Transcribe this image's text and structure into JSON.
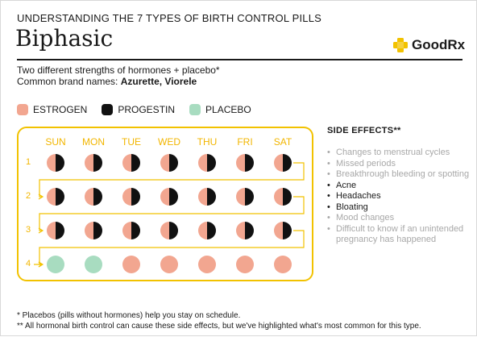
{
  "header": {
    "eyebrow": "UNDERSTANDING THE 7 TYPES OF BIRTH CONTROL PILLS",
    "title": "Biphasic",
    "logo_text": "GoodRx"
  },
  "intro": {
    "line1": "Two different strengths of hormones  + placebo*",
    "brand_prefix": "Common brand names: ",
    "brand_names": "Azurette, Viorele"
  },
  "legend": [
    {
      "label": "ESTROGEN",
      "color": "#f2a690"
    },
    {
      "label": "PROGESTIN",
      "color": "#111111"
    },
    {
      "label": "PLACEBO",
      "color": "#a8dcc0"
    }
  ],
  "calendar": {
    "days": [
      "SUN",
      "MON",
      "TUE",
      "WED",
      "THU",
      "FRI",
      "SAT"
    ],
    "weeks": [
      {
        "label": "1",
        "pills": [
          "combo",
          "combo",
          "combo",
          "combo",
          "combo",
          "combo",
          "combo"
        ]
      },
      {
        "label": "2",
        "pills": [
          "combo",
          "combo",
          "combo",
          "combo",
          "combo",
          "combo",
          "combo"
        ]
      },
      {
        "label": "3",
        "pills": [
          "combo",
          "combo",
          "combo",
          "combo",
          "combo",
          "combo",
          "combo"
        ]
      },
      {
        "label": "4",
        "pills": [
          "placebo",
          "placebo",
          "estrogen",
          "estrogen",
          "estrogen",
          "estrogen",
          "estrogen"
        ]
      }
    ],
    "accent_color": "#f2c200"
  },
  "side_effects": {
    "title": "SIDE EFFECTS**",
    "items": [
      {
        "text": "Changes to menstrual cycles",
        "highlight": false
      },
      {
        "text": "Missed periods",
        "highlight": false
      },
      {
        "text": "Breakthrough bleeding or spotting",
        "highlight": false
      },
      {
        "text": "Acne",
        "highlight": true
      },
      {
        "text": "Headaches",
        "highlight": true
      },
      {
        "text": "Bloating",
        "highlight": true
      },
      {
        "text": "Mood changes",
        "highlight": false
      },
      {
        "text": "Difficult to know if an unintended pregnancy has happened",
        "highlight": false
      }
    ]
  },
  "footnotes": {
    "note1": "* Placebos (pills without hormones) help you stay on schedule.",
    "note2": "** All hormonal birth control can cause these side effects, but we've highlighted what's most common for this type."
  }
}
